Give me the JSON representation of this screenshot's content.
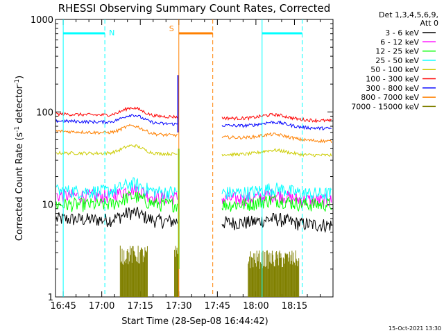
{
  "chart_data": {
    "type": "line",
    "title": "RHESSI Observing Summary Count Rates, Corrected",
    "xlabel": "Start Time (28-Sep-08 16:44:42)",
    "ylabel": "Corrected Count Rate (s",
    "ylabel_sup": "-1",
    "ylabel_mid": " detector",
    "ylabel_close": ")",
    "yscale": "log",
    "ylim": [
      1,
      1000
    ],
    "y_ticks": [
      {
        "value": 1,
        "label": "1"
      },
      {
        "value": 10,
        "label": "10"
      },
      {
        "value": 100,
        "label": "100"
      },
      {
        "value": 1000,
        "label": "1000"
      }
    ],
    "xlim_minutes": [
      16.7,
      18.5
    ],
    "x_ticks": [
      {
        "t": 16.75,
        "label": "16:45"
      },
      {
        "t": 17.0,
        "label": "17:00"
      },
      {
        "t": 17.25,
        "label": "17:15"
      },
      {
        "t": 17.5,
        "label": "17:30"
      },
      {
        "t": 17.75,
        "label": "17:45"
      },
      {
        "t": 18.0,
        "label": "18:00"
      },
      {
        "t": 18.25,
        "label": "18:15"
      }
    ],
    "legend": {
      "header1": "Det 1,3,4,5,6,9,",
      "header2": "Att 0",
      "placement": "right"
    },
    "series": [
      {
        "name": "3 - 6 keV",
        "color": "#000000",
        "level_start": 7,
        "level_end": 6
      },
      {
        "name": "6 - 12 keV",
        "color": "#ff00ff",
        "level_start": 12.5,
        "level_end": 11
      },
      {
        "name": "12 - 25 keV",
        "color": "#00ff00",
        "level_start": 10,
        "level_end": 10
      },
      {
        "name": "25 - 50 keV",
        "color": "#00ffff",
        "level_start": 14,
        "level_end": 13
      },
      {
        "name": "50 - 100 keV",
        "color": "#cccc00",
        "level_start": 36,
        "level_end": 34
      },
      {
        "name": "100 - 300 keV",
        "color": "#ff0000",
        "level_start": 95,
        "level_end": 80
      },
      {
        "name": "300 - 800 keV",
        "color": "#0000ff",
        "level_start": 80,
        "level_end": 66
      },
      {
        "name": "800 - 7000 keV",
        "color": "#ff8000",
        "level_start": 62,
        "level_end": 48
      },
      {
        "name": "7000 - 15000 keV",
        "color": "#808000",
        "level_start": 1,
        "level_end": 1
      }
    ],
    "annotations": [
      {
        "label": "N",
        "color": "#00ffff",
        "start": 16.75,
        "end": 17.02
      },
      {
        "label": "S",
        "color": "#ff8000",
        "start": 17.5,
        "end": 17.72
      },
      {
        "label": "",
        "color": "#00ffff",
        "start": 18.04,
        "end": 18.3
      }
    ],
    "gaps": [
      [
        17.5,
        17.78
      ]
    ]
  },
  "footer": {
    "timestamp": "15-Oct-2021 13:30"
  }
}
